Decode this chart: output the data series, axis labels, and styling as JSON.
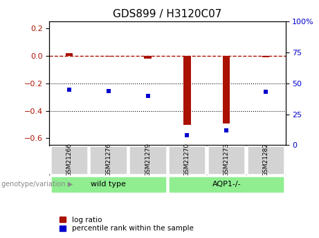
{
  "title": "GDS899 / H3120C07",
  "samples": [
    "GSM21266",
    "GSM21276",
    "GSM21279",
    "GSM21270",
    "GSM21273",
    "GSM21282"
  ],
  "log_ratio": [
    0.02,
    -0.005,
    -0.02,
    -0.5,
    -0.49,
    -0.01
  ],
  "percentile_rank": [
    45,
    44,
    40,
    8,
    12,
    43
  ],
  "group_bg_color": "#90EE90",
  "sample_box_color": "#d3d3d3",
  "ylim_left": [
    -0.65,
    0.25
  ],
  "ylim_right": [
    0,
    100
  ],
  "yticks_left": [
    0.2,
    0.0,
    -0.2,
    -0.4,
    -0.6
  ],
  "yticks_right": [
    100,
    75,
    50,
    25,
    0
  ],
  "hline_y": 0,
  "dotted_lines": [
    -0.2,
    -0.4
  ],
  "red_color": "#aa1100",
  "blue_color": "#0000cc",
  "legend_label_red": "log ratio",
  "legend_label_blue": "percentile rank within the sample",
  "genotype_label": "genotype/variation",
  "group_data": [
    {
      "start": 0,
      "end": 2,
      "label": "wild type"
    },
    {
      "start": 3,
      "end": 5,
      "label": "AQP1-/-"
    }
  ]
}
